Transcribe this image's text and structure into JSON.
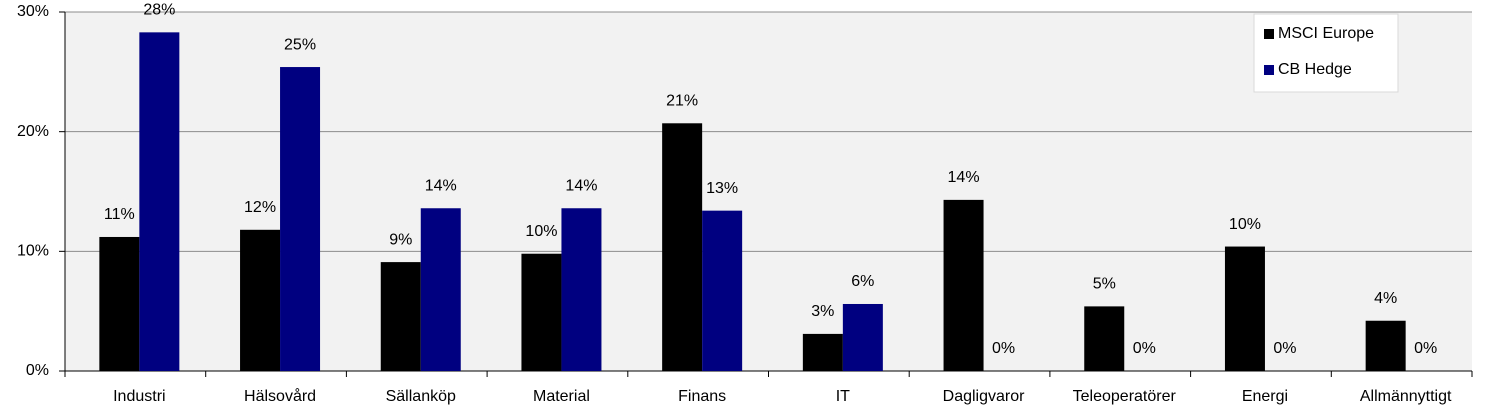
{
  "chart_data": {
    "type": "bar",
    "categories": [
      "Industri",
      "Hälsovård",
      "Sällanköp",
      "Material",
      "Finans",
      "IT",
      "Dagligvaror",
      "Teleoperatörer",
      "Energi",
      "Allmännyttigt"
    ],
    "series": [
      {
        "name": "MSCI Europe",
        "color": "#000000",
        "values": [
          11.2,
          11.8,
          9.1,
          9.8,
          20.7,
          3.1,
          14.3,
          5.4,
          10.4,
          4.2
        ],
        "value_labels": [
          "11%",
          "12%",
          "9%",
          "10%",
          "21%",
          "3%",
          "14%",
          "5%",
          "10%",
          "4%"
        ]
      },
      {
        "name": "CB Hedge",
        "color": "#000080",
        "values": [
          28.3,
          25.4,
          13.6,
          13.6,
          13.4,
          5.6,
          0,
          0,
          0,
          0
        ],
        "value_labels": [
          "28%",
          "25%",
          "14%",
          "14%",
          "13%",
          "6%",
          "0%",
          "0%",
          "0%",
          "0%"
        ]
      }
    ],
    "ylim": [
      0,
      30
    ],
    "yticks": [
      {
        "value": 0,
        "label": "0%"
      },
      {
        "value": 10,
        "label": "10%"
      },
      {
        "value": 20,
        "label": "20%"
      },
      {
        "value": 30,
        "label": "30%"
      }
    ],
    "grid": true,
    "legend": "top-right",
    "plot_background": "#f2f2f2"
  }
}
